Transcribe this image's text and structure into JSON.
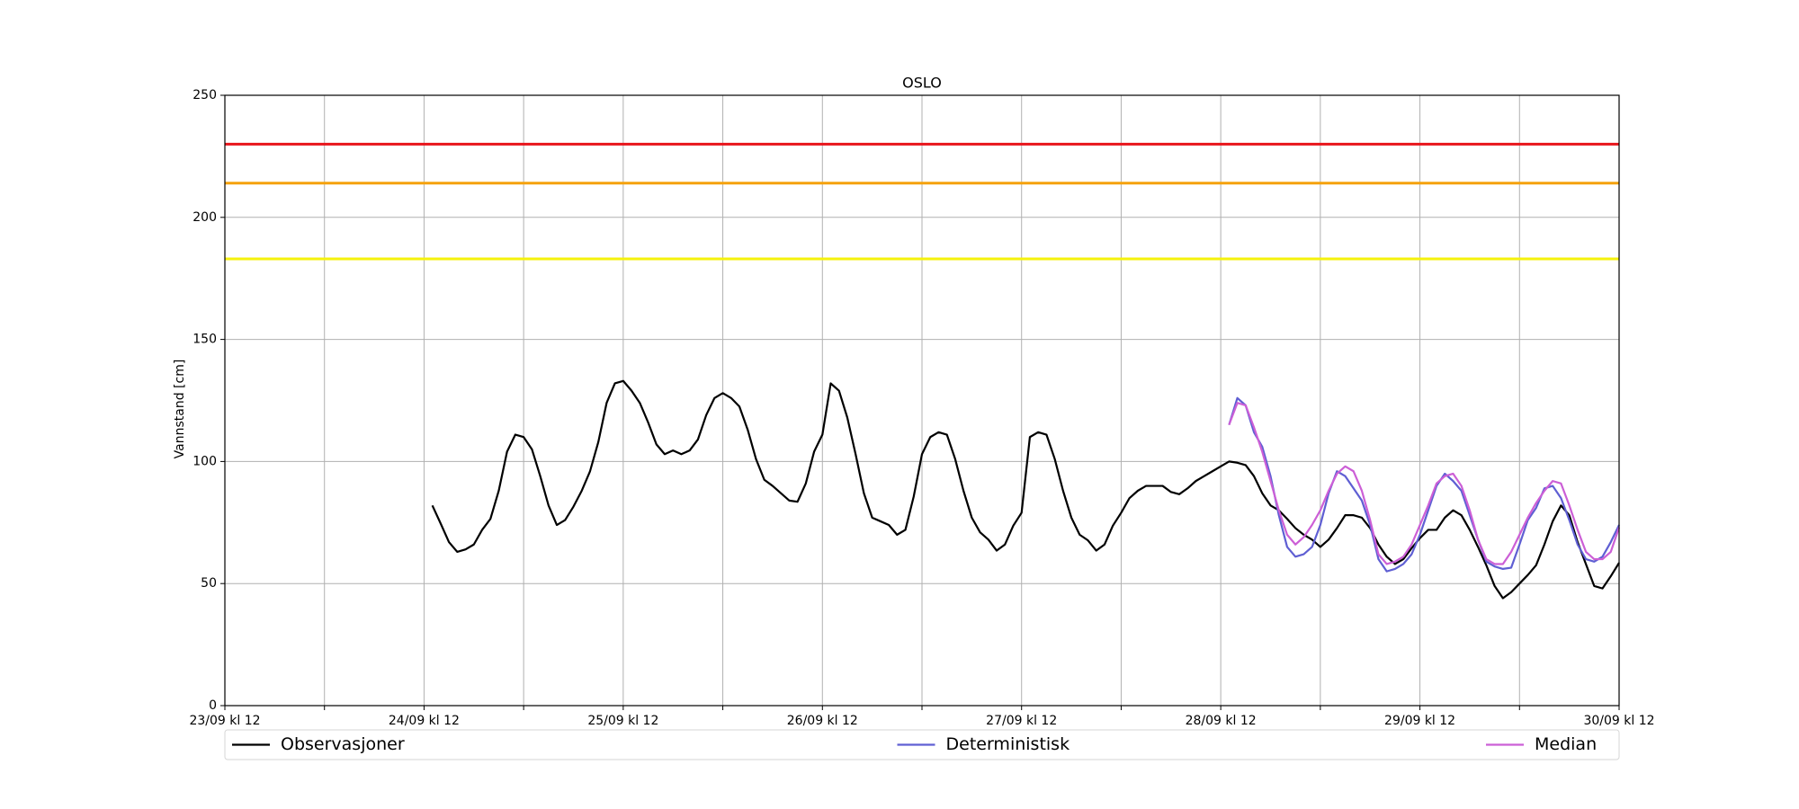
{
  "chart_data": {
    "type": "line",
    "title": "OSLO",
    "y_label": "Vannstand [cm]",
    "xlim": [
      0,
      168
    ],
    "ylim": [
      0,
      250
    ],
    "yticks": [
      0,
      50,
      100,
      150,
      200,
      250
    ],
    "xticks": [
      {
        "value": 0,
        "label": "23/09 kl 12"
      },
      {
        "value": 24,
        "label": "24/09 kl 12"
      },
      {
        "value": 48,
        "label": "25/09 kl 12"
      },
      {
        "value": 72,
        "label": "26/09 kl 12"
      },
      {
        "value": 96,
        "label": "27/09 kl 12"
      },
      {
        "value": 120,
        "label": "28/09 kl 12"
      },
      {
        "value": 144,
        "label": "29/09 kl 12"
      },
      {
        "value": 168,
        "label": "30/09 kl 12"
      }
    ],
    "xminor": [
      12,
      36,
      60,
      84,
      108,
      132,
      156
    ],
    "grid": true,
    "legend": "bottom-expand",
    "hlines": [
      {
        "value": 230,
        "color": "#e8151b"
      },
      {
        "value": 214,
        "color": "#f5a20c"
      },
      {
        "value": 183,
        "color": "#f5f20c"
      }
    ],
    "series": [
      {
        "name": "Observasjoner",
        "color": "#000000",
        "x": [
          25,
          26,
          27,
          28,
          29,
          30,
          31,
          32,
          33,
          34,
          35,
          36,
          37,
          38,
          39,
          40,
          41,
          42,
          43,
          44,
          45,
          46,
          47,
          48,
          49,
          50,
          51,
          52,
          53,
          54,
          55,
          56,
          57,
          58,
          59,
          60,
          61,
          62,
          63,
          64,
          65,
          66,
          67,
          68,
          69,
          70,
          71,
          72,
          73,
          74,
          75,
          76,
          77,
          78,
          79,
          80,
          81,
          82,
          83,
          84,
          85,
          86,
          87,
          88,
          89,
          90,
          91,
          92,
          93,
          94,
          95,
          96,
          97,
          98,
          99,
          100,
          101,
          102,
          103,
          104,
          105,
          106,
          107,
          108,
          109,
          110,
          111,
          112,
          113,
          114,
          115,
          116,
          117,
          118,
          119,
          120,
          121,
          122,
          123,
          124,
          125,
          126,
          127,
          128,
          129,
          130,
          131,
          132,
          133,
          134,
          135,
          136,
          137,
          138,
          139,
          140,
          141,
          142,
          143,
          144,
          145,
          146,
          147,
          148,
          149,
          150,
          151,
          152,
          153,
          154,
          155,
          156,
          157,
          158,
          159,
          160,
          161,
          162,
          163,
          164,
          165,
          166,
          167,
          168
        ],
        "values": [
          82,
          74.6,
          67,
          63,
          64,
          66,
          72,
          76.5,
          88,
          104,
          111,
          110,
          105,
          94,
          82,
          74,
          76,
          81.5,
          88,
          96,
          108,
          124,
          132,
          133,
          129,
          124,
          116,
          107,
          103,
          104.5,
          103,
          104.5,
          109,
          119,
          126,
          128,
          126,
          122.5,
          113,
          101,
          92.5,
          90,
          87,
          84,
          83.5,
          91,
          104,
          111,
          132,
          129,
          118,
          103,
          87,
          77,
          75.5,
          74,
          70,
          72,
          85.6,
          103,
          110,
          112,
          111,
          101,
          88,
          77,
          71,
          68,
          63.5,
          66,
          73.7,
          79,
          110,
          112,
          111,
          101,
          88,
          77,
          70,
          67.7,
          63.5,
          66,
          73.7,
          79,
          85,
          88,
          90,
          90,
          90,
          87.5,
          86.6,
          89,
          92,
          94,
          96,
          98,
          100,
          99.5,
          98.5,
          94,
          87,
          82,
          80,
          76.5,
          72.7,
          70,
          68,
          65,
          68,
          72.7,
          78,
          78,
          77,
          72.7,
          66,
          61,
          58,
          60,
          64.5,
          68.6,
          72,
          72,
          77,
          80,
          78,
          72,
          65,
          57.5,
          49,
          44,
          46.5,
          50,
          53.5,
          57.5,
          66,
          75.5,
          82,
          78,
          67,
          58,
          49,
          48,
          53,
          58.5
        ]
      },
      {
        "name": "Deterministisk",
        "color": "#5f5fd3",
        "x": [
          121,
          122,
          123,
          124,
          125,
          126,
          127,
          128,
          129,
          130,
          131,
          132,
          133,
          134,
          135,
          136,
          137,
          138,
          139,
          140,
          141,
          142,
          143,
          144,
          145,
          146,
          147,
          148,
          149,
          150,
          151,
          152,
          153,
          154,
          155,
          156,
          157,
          158,
          159,
          160,
          161,
          162,
          163,
          164,
          165,
          166,
          167,
          168
        ],
        "values": [
          115,
          126,
          123,
          112,
          106,
          94,
          78,
          65,
          61,
          62,
          65,
          74,
          87,
          96,
          94,
          89,
          84,
          74,
          60,
          55,
          56,
          58,
          62,
          70,
          80,
          90,
          95,
          92,
          88,
          78,
          68,
          59,
          57,
          56,
          56.5,
          66,
          76,
          81,
          89,
          90,
          85,
          76,
          66,
          60,
          59,
          61,
          67,
          74
        ]
      },
      {
        "name": "Median",
        "color": "#cc5fd6",
        "x": [
          121,
          122,
          123,
          124,
          125,
          126,
          127,
          128,
          129,
          130,
          131,
          132,
          133,
          134,
          135,
          136,
          137,
          138,
          139,
          140,
          141,
          142,
          143,
          144,
          145,
          146,
          147,
          148,
          149,
          150,
          151,
          152,
          153,
          154,
          155,
          156,
          157,
          158,
          159,
          160,
          161,
          162,
          163,
          164,
          165,
          166,
          167,
          168
        ],
        "values": [
          115,
          124,
          123,
          114,
          104,
          92,
          80,
          70,
          66,
          69,
          74,
          80,
          88,
          95,
          98,
          96,
          88,
          76,
          62,
          58,
          59,
          61,
          66,
          74,
          82,
          91,
          94,
          95,
          90,
          80,
          68,
          60,
          58,
          58,
          63,
          70,
          77,
          83,
          88,
          92,
          91,
          82,
          72,
          63,
          60,
          60,
          63,
          73
        ]
      }
    ]
  }
}
